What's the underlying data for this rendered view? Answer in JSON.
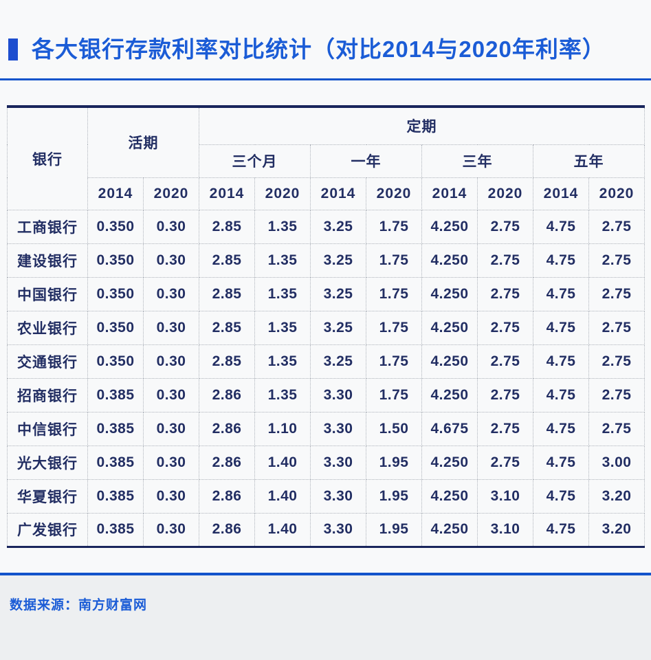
{
  "title": "各大银行存款利率对比统计（对比2014与2020年利率）",
  "table": {
    "bank_header": "银行",
    "demand_header": "活期",
    "fixed_header": "定期",
    "term_headers": [
      "三个月",
      "一年",
      "三年",
      "五年"
    ],
    "year_headers": [
      "2014",
      "2020",
      "2014",
      "2020",
      "2014",
      "2020",
      "2014",
      "2020",
      "2014",
      "2020"
    ],
    "rows": [
      {
        "bank": "工商银行",
        "values": [
          "0.350",
          "0.30",
          "2.85",
          "1.35",
          "3.25",
          "1.75",
          "4.250",
          "2.75",
          "4.75",
          "2.75"
        ]
      },
      {
        "bank": "建设银行",
        "values": [
          "0.350",
          "0.30",
          "2.85",
          "1.35",
          "3.25",
          "1.75",
          "4.250",
          "2.75",
          "4.75",
          "2.75"
        ]
      },
      {
        "bank": "中国银行",
        "values": [
          "0.350",
          "0.30",
          "2.85",
          "1.35",
          "3.25",
          "1.75",
          "4.250",
          "2.75",
          "4.75",
          "2.75"
        ]
      },
      {
        "bank": "农业银行",
        "values": [
          "0.350",
          "0.30",
          "2.85",
          "1.35",
          "3.25",
          "1.75",
          "4.250",
          "2.75",
          "4.75",
          "2.75"
        ]
      },
      {
        "bank": "交通银行",
        "values": [
          "0.350",
          "0.30",
          "2.85",
          "1.35",
          "3.25",
          "1.75",
          "4.250",
          "2.75",
          "4.75",
          "2.75"
        ]
      },
      {
        "bank": "招商银行",
        "values": [
          "0.385",
          "0.30",
          "2.86",
          "1.35",
          "3.30",
          "1.75",
          "4.250",
          "2.75",
          "4.75",
          "2.75"
        ]
      },
      {
        "bank": "中信银行",
        "values": [
          "0.385",
          "0.30",
          "2.86",
          "1.10",
          "3.30",
          "1.50",
          "4.675",
          "2.75",
          "4.75",
          "2.75"
        ]
      },
      {
        "bank": "光大银行",
        "values": [
          "0.385",
          "0.30",
          "2.86",
          "1.40",
          "3.30",
          "1.95",
          "4.250",
          "2.75",
          "4.75",
          "3.00"
        ]
      },
      {
        "bank": "华夏银行",
        "values": [
          "0.385",
          "0.30",
          "2.86",
          "1.40",
          "3.30",
          "1.95",
          "4.250",
          "3.10",
          "4.75",
          "3.20"
        ]
      },
      {
        "bank": "广发银行",
        "values": [
          "0.385",
          "0.30",
          "2.86",
          "1.40",
          "3.30",
          "1.95",
          "4.250",
          "3.10",
          "4.75",
          "3.20"
        ]
      }
    ]
  },
  "footer": {
    "source": "数据来源：南方财富网"
  },
  "colors": {
    "title_blue": "#1b5cd6",
    "divider_blue": "#1254cb",
    "table_navy": "#19255c",
    "cell_text_navy": "#222e63",
    "dotted_grid_grey": "#adb2ba",
    "footer_background": "#edeff1"
  },
  "chart_data": {
    "type": "table",
    "title": "各大银行存款利率对比统计（对比2014与2020年利率）",
    "columns": [
      "银行",
      "活期 2014",
      "活期 2020",
      "三个月 2014",
      "三个月 2020",
      "一年 2014",
      "一年 2020",
      "三年 2014",
      "三年 2020",
      "五年 2014",
      "五年 2020"
    ],
    "rows": [
      [
        "工商银行",
        0.35,
        0.3,
        2.85,
        1.35,
        3.25,
        1.75,
        4.25,
        2.75,
        4.75,
        2.75
      ],
      [
        "建设银行",
        0.35,
        0.3,
        2.85,
        1.35,
        3.25,
        1.75,
        4.25,
        2.75,
        4.75,
        2.75
      ],
      [
        "中国银行",
        0.35,
        0.3,
        2.85,
        1.35,
        3.25,
        1.75,
        4.25,
        2.75,
        4.75,
        2.75
      ],
      [
        "农业银行",
        0.35,
        0.3,
        2.85,
        1.35,
        3.25,
        1.75,
        4.25,
        2.75,
        4.75,
        2.75
      ],
      [
        "交通银行",
        0.35,
        0.3,
        2.85,
        1.35,
        3.25,
        1.75,
        4.25,
        2.75,
        4.75,
        2.75
      ],
      [
        "招商银行",
        0.385,
        0.3,
        2.86,
        1.35,
        3.3,
        1.75,
        4.25,
        2.75,
        4.75,
        2.75
      ],
      [
        "中信银行",
        0.385,
        0.3,
        2.86,
        1.1,
        3.3,
        1.5,
        4.675,
        2.75,
        4.75,
        2.75
      ],
      [
        "光大银行",
        0.385,
        0.3,
        2.86,
        1.4,
        3.3,
        1.95,
        4.25,
        2.75,
        4.75,
        3.0
      ],
      [
        "华夏银行",
        0.385,
        0.3,
        2.86,
        1.4,
        3.3,
        1.95,
        4.25,
        3.1,
        4.75,
        3.2
      ],
      [
        "广发银行",
        0.385,
        0.3,
        2.86,
        1.4,
        3.3,
        1.95,
        4.25,
        3.1,
        4.75,
        3.2
      ]
    ],
    "source": "数据来源：南方财富网"
  }
}
